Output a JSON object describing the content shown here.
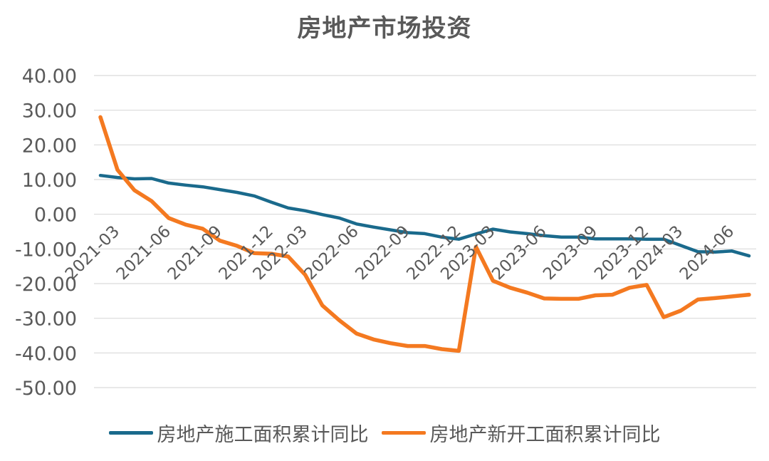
{
  "chart_data": {
    "type": "line",
    "title": "房地产市场投资",
    "xlabel": "",
    "ylabel": "",
    "ylim": [
      -50,
      40
    ],
    "yticks": [
      "40.00",
      "30.00",
      "20.00",
      "10.00",
      "0.00",
      "-10.00",
      "-20.00",
      "-30.00",
      "-40.00",
      "-50.00"
    ],
    "x_tick_labels": [
      "2021-03",
      "2021-06",
      "2021-09",
      "2021-12",
      "2022-03",
      "2022-06",
      "2022-09",
      "2022-12",
      "2023-03",
      "2023-06",
      "2023-09",
      "2023-12",
      "2024-03",
      "2024-06"
    ],
    "x": [
      "2021-02",
      "2021-03",
      "2021-04",
      "2021-05",
      "2021-06",
      "2021-07",
      "2021-08",
      "2021-09",
      "2021-10",
      "2021-11",
      "2021-12",
      "2022-02",
      "2022-03",
      "2022-04",
      "2022-05",
      "2022-06",
      "2022-07",
      "2022-08",
      "2022-09",
      "2022-10",
      "2022-11",
      "2022-12",
      "2023-02",
      "2023-03",
      "2023-04",
      "2023-05",
      "2023-06",
      "2023-07",
      "2023-08",
      "2023-09",
      "2023-10",
      "2023-11",
      "2023-12",
      "2024-02",
      "2024-03",
      "2024-04",
      "2024-05",
      "2024-06",
      "2024-07"
    ],
    "grid": true,
    "legend_position": "bottom",
    "series": [
      {
        "name": "房地产施工面积累计同比",
        "color": "#1a6a8c",
        "values": [
          11.2,
          10.6,
          10.2,
          10.3,
          9.0,
          8.4,
          7.9,
          7.1,
          6.3,
          5.3,
          3.5,
          1.8,
          1.0,
          -0.1,
          -1.1,
          -2.8,
          -3.7,
          -4.5,
          -5.3,
          -5.6,
          -6.6,
          -7.2,
          -5.7,
          -4.3,
          -5.1,
          -5.6,
          -6.2,
          -6.6,
          -6.6,
          -7.1,
          -7.1,
          -7.1,
          -7.2,
          -7.2,
          -9.0,
          -10.8,
          -10.9,
          -10.6,
          -12.0
        ]
      },
      {
        "name": "房地产新开工面积累计同比",
        "color": "#f47920",
        "values": [
          28.0,
          12.8,
          6.9,
          3.8,
          -1.1,
          -3.0,
          -4.2,
          -7.6,
          -9.1,
          -11.2,
          -11.4,
          -12.2,
          -17.5,
          -26.3,
          -30.6,
          -34.4,
          -36.1,
          -37.2,
          -38.0,
          -38.0,
          -38.9,
          -39.4,
          -9.4,
          -19.2,
          -21.2,
          -22.6,
          -24.3,
          -24.4,
          -24.4,
          -23.4,
          -23.2,
          -21.2,
          -20.4,
          -29.7,
          -27.8,
          -24.6,
          -24.2,
          -23.7,
          -23.2
        ]
      }
    ]
  }
}
